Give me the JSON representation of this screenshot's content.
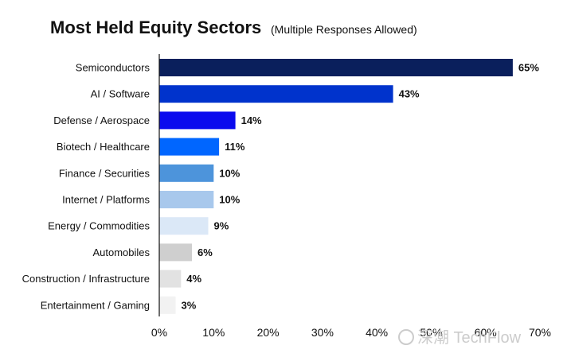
{
  "chart_data": {
    "type": "bar",
    "orientation": "horizontal",
    "title": "Most Held Equity Sectors",
    "subtitle": "(Multiple Responses Allowed)",
    "categories": [
      "Semiconductors",
      "AI / Software",
      "Defense / Aerospace",
      "Biotech / Healthcare",
      "Finance / Securities",
      "Internet / Platforms",
      "Energy / Commodities",
      "Automobiles",
      "Construction / Infrastructure",
      "Entertainment / Gaming"
    ],
    "values": [
      65,
      43,
      14,
      11,
      10,
      10,
      9,
      6,
      4,
      3
    ],
    "value_labels": [
      "65%",
      "43%",
      "14%",
      "11%",
      "10%",
      "10%",
      "9%",
      "6%",
      "4%",
      "3%"
    ],
    "bar_colors": [
      "#0a1f5c",
      "#0033cc",
      "#0a0aee",
      "#0066ff",
      "#4d94db",
      "#a8c8ec",
      "#dbe8f7",
      "#cfcfcf",
      "#e2e2e2",
      "#f2f2f2"
    ],
    "xlim": [
      0,
      70
    ],
    "xticks": [
      0,
      10,
      20,
      30,
      40,
      50,
      60,
      70
    ],
    "xtick_labels": [
      "0%",
      "10%",
      "20%",
      "30%",
      "40%",
      "50%",
      "60%",
      "70%"
    ],
    "grid": false,
    "legend": "none"
  },
  "watermark": "深潮 TechFlow"
}
